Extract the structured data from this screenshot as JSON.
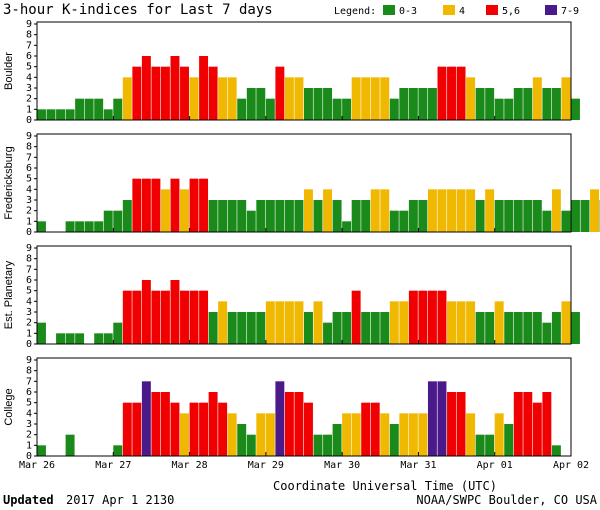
{
  "chart_data": {
    "type": "bar",
    "title": "3-hour K-indices for Last 7 days",
    "legend": {
      "label": "Legend:",
      "placement": "top-right",
      "entries": [
        {
          "label": "0-3",
          "color": "#1a8a1a"
        },
        {
          "label": "4",
          "color": "#f0b800"
        },
        {
          "label": "5,6",
          "color": "#f00000"
        },
        {
          "label": "7-9",
          "color": "#4b1a8a"
        }
      ]
    },
    "xlabel": "Coordinate Universal Time (UTC)",
    "x_tick_labels": [
      "Mar 26",
      "Mar 27",
      "Mar 28",
      "Mar 29",
      "Mar 30",
      "Mar 31",
      "Apr 01",
      "Apr 02"
    ],
    "ylim": [
      0,
      9
    ],
    "y_ticks": [
      0,
      1,
      2,
      3,
      4,
      5,
      6,
      7,
      8,
      9
    ],
    "bars_per_day": 8,
    "series": [
      {
        "name": "Boulder",
        "values": [
          1,
          1,
          1,
          1,
          2,
          2,
          2,
          1,
          2,
          4,
          5,
          6,
          5,
          5,
          6,
          5,
          4,
          6,
          5,
          4,
          4,
          2,
          3,
          3,
          2,
          5,
          4,
          4,
          3,
          3,
          3,
          2,
          2,
          4,
          4,
          4,
          4,
          2,
          3,
          3,
          3,
          3,
          5,
          5,
          5,
          4,
          3,
          3,
          2,
          2,
          3,
          3,
          4,
          3,
          3,
          4,
          2,
          0
        ]
      },
      {
        "name": "Fredericksburg",
        "values": [
          1,
          0,
          0,
          1,
          1,
          1,
          1,
          2,
          2,
          3,
          5,
          5,
          5,
          4,
          5,
          4,
          5,
          5,
          3,
          3,
          3,
          3,
          2,
          3,
          3,
          3,
          3,
          3,
          4,
          3,
          4,
          3,
          1,
          3,
          3,
          4,
          4,
          2,
          2,
          3,
          3,
          4,
          4,
          4,
          4,
          4,
          3,
          4,
          3,
          3,
          3,
          3,
          3,
          2,
          4,
          2,
          3,
          3,
          4,
          3,
          0
        ]
      },
      {
        "name": "Est. Planetary",
        "values": [
          2,
          0,
          1,
          1,
          1,
          0,
          1,
          1,
          2,
          5,
          5,
          6,
          5,
          5,
          6,
          5,
          5,
          5,
          3,
          4,
          3,
          3,
          3,
          3,
          4,
          4,
          4,
          4,
          3,
          4,
          2,
          3,
          3,
          5,
          3,
          3,
          3,
          4,
          4,
          5,
          5,
          5,
          5,
          4,
          4,
          4,
          3,
          3,
          4,
          3,
          3,
          3,
          3,
          2,
          3,
          4,
          3
        ]
      },
      {
        "name": "College",
        "values": [
          1,
          0,
          0,
          2,
          0,
          0,
          0,
          0,
          1,
          5,
          5,
          7,
          6,
          6,
          5,
          4,
          5,
          5,
          6,
          5,
          4,
          3,
          2,
          4,
          4,
          7,
          6,
          6,
          5,
          2,
          2,
          3,
          4,
          4,
          5,
          5,
          4,
          3,
          4,
          4,
          4,
          7,
          7,
          6,
          6,
          4,
          2,
          2,
          4,
          3,
          6,
          6,
          5,
          6,
          1,
          0
        ]
      }
    ]
  },
  "footer": {
    "updated_label": "Updated",
    "updated_value": "2017 Apr  1 2130",
    "credit": "NOAA/SWPC Boulder, CO USA"
  }
}
